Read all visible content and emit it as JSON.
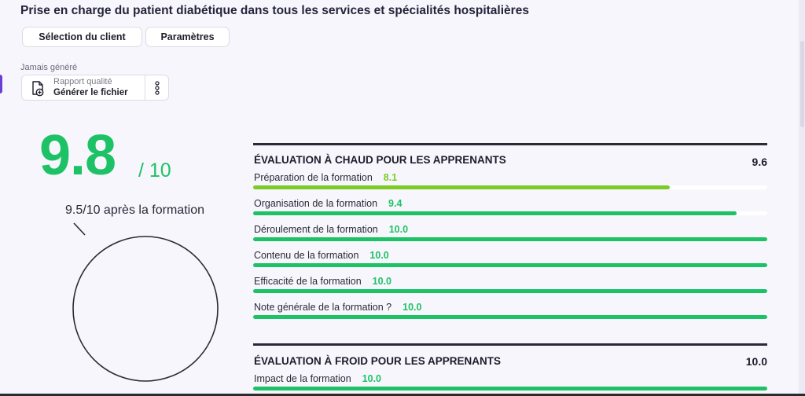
{
  "page": {
    "title": "Prise en charge du patient diabétique dans tous les services et spécialités hospitalières"
  },
  "buttons": {
    "client_selection": "Sélection du client",
    "parameters": "Paramètres"
  },
  "report": {
    "status": "Jamais généré",
    "subtitle": "Rapport qualité",
    "action": "Générer le fichier",
    "icon": "file-add-icon",
    "menu_icon": "more-vertical-icon"
  },
  "score": {
    "value": "9.8",
    "max": "/ 10",
    "after_label": "9.5/10 après la formation",
    "gauge_fraction": 0.95
  },
  "colors": {
    "score_green": "#1ec266",
    "bar_green": "#1ec266",
    "bar_light_green": "#7ccc25"
  },
  "hot_evaluation": {
    "title": "ÉVALUATION À CHAUD POUR LES APPRENANTS",
    "score": "9.6",
    "items": [
      {
        "label": "Préparation de la formation",
        "value": "8.1",
        "fraction": 0.81,
        "color": "#7ccc25"
      },
      {
        "label": "Organisation de la formation",
        "value": "9.4",
        "fraction": 0.94,
        "color": "#1ec266"
      },
      {
        "label": "Déroulement de la formation",
        "value": "10.0",
        "fraction": 1.0,
        "color": "#1ec266"
      },
      {
        "label": "Contenu de la formation",
        "value": "10.0",
        "fraction": 1.0,
        "color": "#1ec266"
      },
      {
        "label": "Efficacité de la formation",
        "value": "10.0",
        "fraction": 1.0,
        "color": "#1ec266"
      },
      {
        "label": "Note générale de la formation ?",
        "value": "10.0",
        "fraction": 1.0,
        "color": "#1ec266"
      }
    ]
  },
  "cold_evaluation": {
    "title": "ÉVALUATION À FROID POUR LES APPRENANTS",
    "score": "10.0",
    "items": [
      {
        "label": "Impact de la formation",
        "value": "10.0",
        "fraction": 1.0,
        "color": "#1ec266"
      }
    ]
  }
}
